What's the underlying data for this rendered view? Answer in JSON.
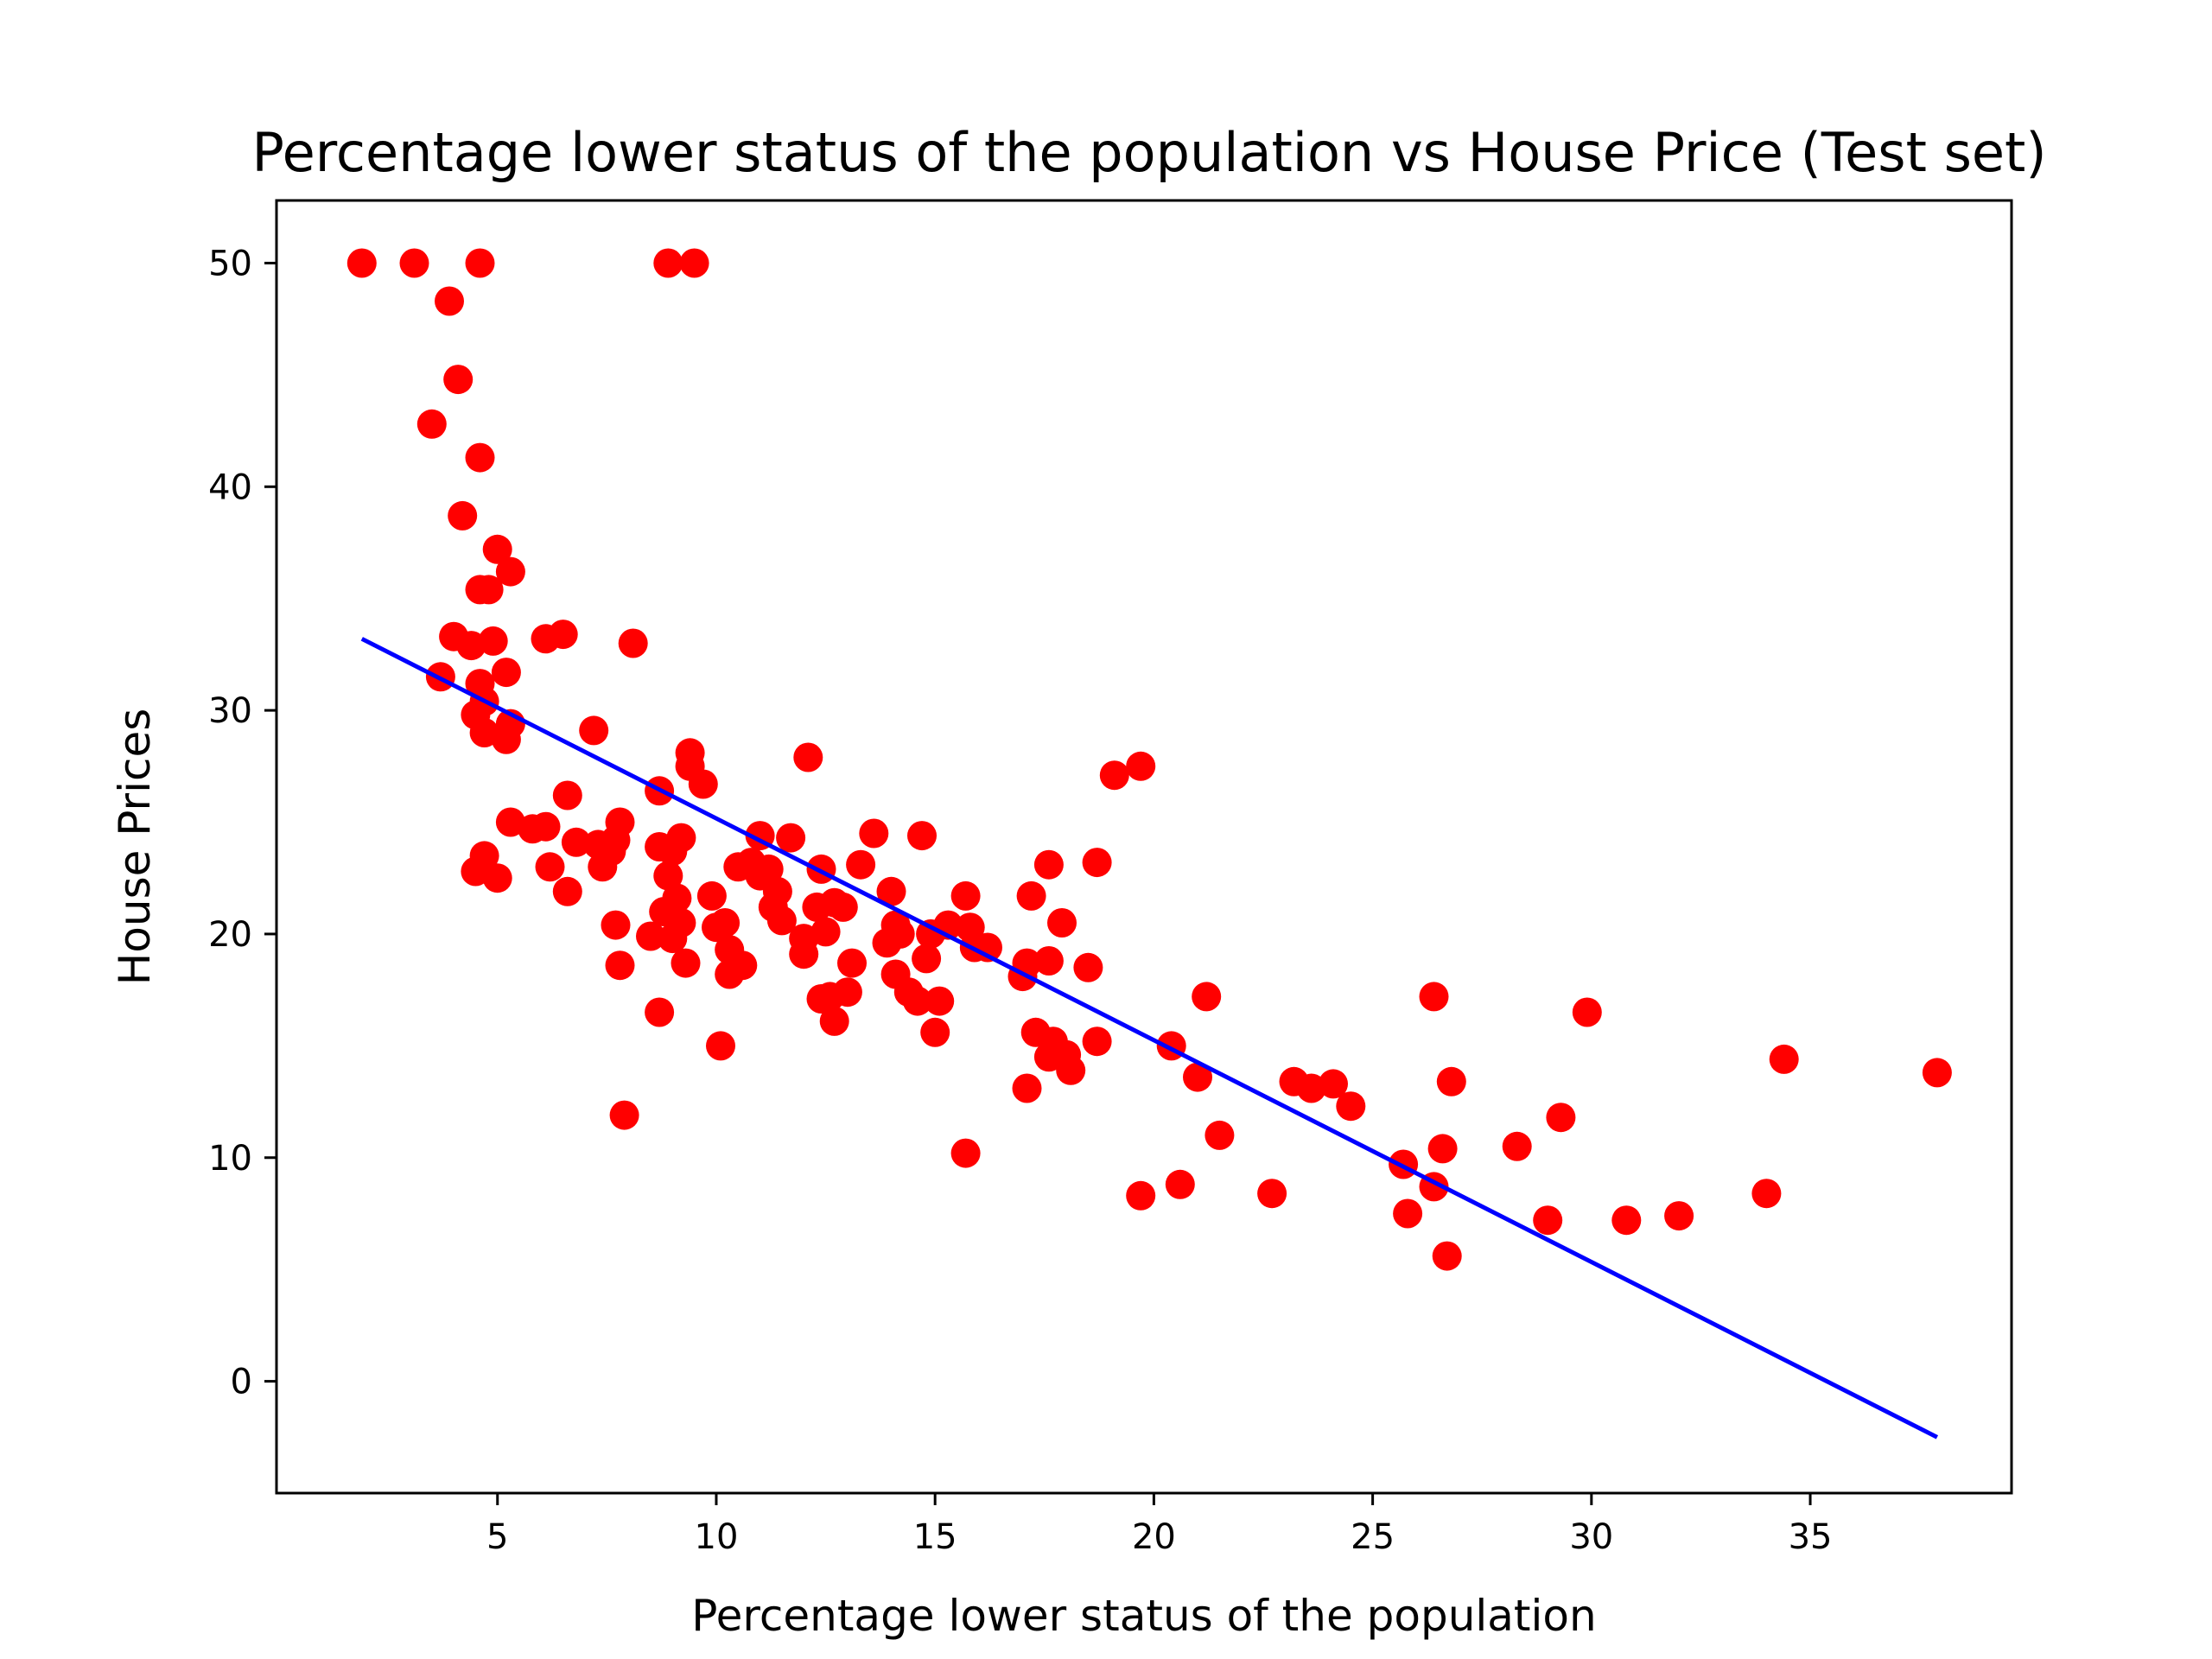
{
  "chart_data": {
    "type": "scatter",
    "title": "Percentage lower status of the population vs House Price (Test set)",
    "xlabel": "Percentage lower status of the population",
    "ylabel": "House Prices",
    "xlim": [
      -0.05,
      39.6
    ],
    "ylim": [
      -5,
      52.8
    ],
    "xticks": [
      5,
      10,
      15,
      20,
      25,
      30,
      35
    ],
    "yticks": [
      0,
      10,
      20,
      30,
      40,
      50
    ],
    "grid": false,
    "legend": null,
    "series": [
      {
        "kind": "scatter",
        "color": "#ff0000",
        "points": [
          [
            1.9,
            50.0
          ],
          [
            3.1,
            50.0
          ],
          [
            4.6,
            50.0
          ],
          [
            8.9,
            50.0
          ],
          [
            9.5,
            50.0
          ],
          [
            3.9,
            48.3
          ],
          [
            4.1,
            44.8
          ],
          [
            3.5,
            42.8
          ],
          [
            4.6,
            41.3
          ],
          [
            4.2,
            38.7
          ],
          [
            5.0,
            37.2
          ],
          [
            5.3,
            36.2
          ],
          [
            4.6,
            35.4
          ],
          [
            4.8,
            35.4
          ],
          [
            4.0,
            33.3
          ],
          [
            4.4,
            32.9
          ],
          [
            4.9,
            33.1
          ],
          [
            6.1,
            33.2
          ],
          [
            6.5,
            33.4
          ],
          [
            8.1,
            33.0
          ],
          [
            3.7,
            31.5
          ],
          [
            4.6,
            31.2
          ],
          [
            5.2,
            31.7
          ],
          [
            4.7,
            30.4
          ],
          [
            4.5,
            29.8
          ],
          [
            5.3,
            29.4
          ],
          [
            4.7,
            29.0
          ],
          [
            5.2,
            28.7
          ],
          [
            7.2,
            29.1
          ],
          [
            9.4,
            28.1
          ],
          [
            9.4,
            27.5
          ],
          [
            9.7,
            26.7
          ],
          [
            12.1,
            27.9
          ],
          [
            19.1,
            27.1
          ],
          [
            19.7,
            27.5
          ],
          [
            8.7,
            26.4
          ],
          [
            6.6,
            26.2
          ],
          [
            5.3,
            25.0
          ],
          [
            5.8,
            24.7
          ],
          [
            6.1,
            24.8
          ],
          [
            6.8,
            24.1
          ],
          [
            7.3,
            24.0
          ],
          [
            7.8,
            25.0
          ],
          [
            7.7,
            24.2
          ],
          [
            7.6,
            23.7
          ],
          [
            7.4,
            23.0
          ],
          [
            8.7,
            23.9
          ],
          [
            9.0,
            23.7
          ],
          [
            9.2,
            24.3
          ],
          [
            4.7,
            23.5
          ],
          [
            4.5,
            22.8
          ],
          [
            5.0,
            22.5
          ],
          [
            6.2,
            23.0
          ],
          [
            6.6,
            21.9
          ],
          [
            8.9,
            22.6
          ],
          [
            9.1,
            21.6
          ],
          [
            8.8,
            21.0
          ],
          [
            9.2,
            20.5
          ],
          [
            9.0,
            19.8
          ],
          [
            9.3,
            18.7
          ],
          [
            8.5,
            19.9
          ],
          [
            7.7,
            20.4
          ],
          [
            7.8,
            18.6
          ],
          [
            8.7,
            16.5
          ],
          [
            7.9,
            11.9
          ],
          [
            9.9,
            21.7
          ],
          [
            10.0,
            20.3
          ],
          [
            10.2,
            20.5
          ],
          [
            10.3,
            19.3
          ],
          [
            10.3,
            18.2
          ],
          [
            10.6,
            18.6
          ],
          [
            10.1,
            15.0
          ],
          [
            10.5,
            23.0
          ],
          [
            10.8,
            23.2
          ],
          [
            11.0,
            24.4
          ],
          [
            11.2,
            22.9
          ],
          [
            11.0,
            22.6
          ],
          [
            11.4,
            21.9
          ],
          [
            11.3,
            21.2
          ],
          [
            11.5,
            20.6
          ],
          [
            11.7,
            24.3
          ],
          [
            12.0,
            19.1
          ],
          [
            12.0,
            19.8
          ],
          [
            12.3,
            21.2
          ],
          [
            12.4,
            22.9
          ],
          [
            12.5,
            20.1
          ],
          [
            12.7,
            21.4
          ],
          [
            12.9,
            21.2
          ],
          [
            13.3,
            23.1
          ],
          [
            12.4,
            17.1
          ],
          [
            12.6,
            17.2
          ],
          [
            13.0,
            17.4
          ],
          [
            12.7,
            16.1
          ],
          [
            13.1,
            18.7
          ],
          [
            13.6,
            24.5
          ],
          [
            13.9,
            19.6
          ],
          [
            14.0,
            21.9
          ],
          [
            14.1,
            20.4
          ],
          [
            14.2,
            20.0
          ],
          [
            14.1,
            18.2
          ],
          [
            14.4,
            17.4
          ],
          [
            14.6,
            17.0
          ],
          [
            14.7,
            24.4
          ],
          [
            14.8,
            18.9
          ],
          [
            14.9,
            20.0
          ],
          [
            15.0,
            15.6
          ],
          [
            15.1,
            17.0
          ],
          [
            15.3,
            20.4
          ],
          [
            15.7,
            21.7
          ],
          [
            15.8,
            20.3
          ],
          [
            15.9,
            19.4
          ],
          [
            16.2,
            19.4
          ],
          [
            15.7,
            10.2
          ],
          [
            17.0,
            18.1
          ],
          [
            17.1,
            18.7
          ],
          [
            17.2,
            21.7
          ],
          [
            17.6,
            23.1
          ],
          [
            17.6,
            18.8
          ],
          [
            17.3,
            15.6
          ],
          [
            17.7,
            15.2
          ],
          [
            17.6,
            14.5
          ],
          [
            17.9,
            20.5
          ],
          [
            18.0,
            14.6
          ],
          [
            18.1,
            13.9
          ],
          [
            17.1,
            13.1
          ],
          [
            18.5,
            18.5
          ],
          [
            18.7,
            23.2
          ],
          [
            18.7,
            15.2
          ],
          [
            19.7,
            8.3
          ],
          [
            20.4,
            15.0
          ],
          [
            20.6,
            8.8
          ],
          [
            21.0,
            13.6
          ],
          [
            21.2,
            17.2
          ],
          [
            21.5,
            11.0
          ],
          [
            22.7,
            8.4
          ],
          [
            23.2,
            13.4
          ],
          [
            23.6,
            13.1
          ],
          [
            24.1,
            13.3
          ],
          [
            24.5,
            12.3
          ],
          [
            25.7,
            9.7
          ],
          [
            25.8,
            7.5
          ],
          [
            26.4,
            17.2
          ],
          [
            26.4,
            8.7
          ],
          [
            26.6,
            10.4
          ],
          [
            26.7,
            5.6
          ],
          [
            26.8,
            13.4
          ],
          [
            28.3,
            10.5
          ],
          [
            29.0,
            7.2
          ],
          [
            29.3,
            11.8
          ],
          [
            29.9,
            16.5
          ],
          [
            30.8,
            7.2
          ],
          [
            32.0,
            7.4
          ],
          [
            34.0,
            8.4
          ],
          [
            34.4,
            14.4
          ],
          [
            37.9,
            13.8
          ]
        ]
      },
      {
        "kind": "line",
        "color": "#0000ff",
        "points": [
          [
            1.9,
            33.2
          ],
          [
            37.9,
            -2.5
          ]
        ]
      }
    ]
  }
}
